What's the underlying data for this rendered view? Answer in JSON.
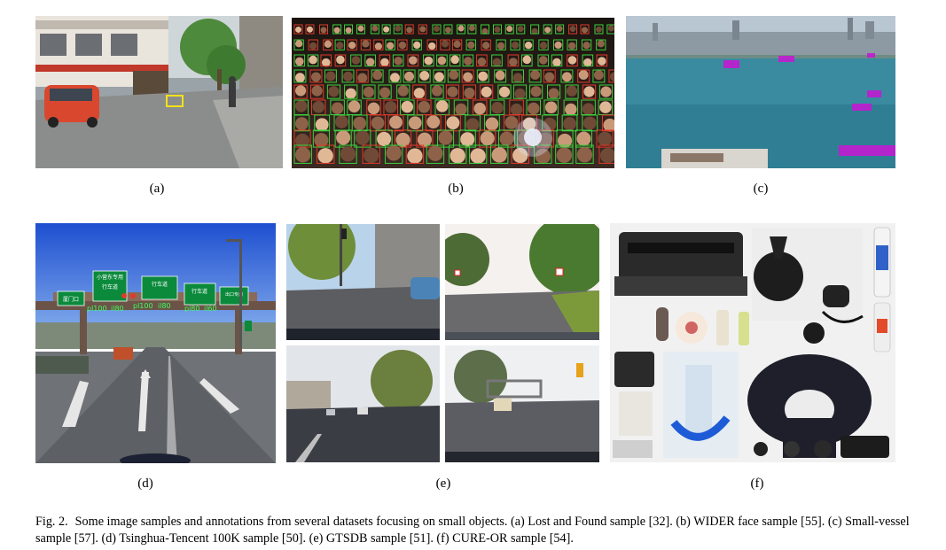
{
  "figure": {
    "panel_labels": [
      "(a)",
      "(b)",
      "(c)",
      "(d)",
      "(e)",
      "(f)"
    ],
    "sign_texts": {
      "gate": "厦门口",
      "left_sign": "小营东专用",
      "left_sign_sub": "行车道",
      "mid_sign": "行车道",
      "right_sign": "行车道",
      "far_right_sign": "出口专用"
    },
    "annotation_labels": [
      "pl100",
      "il80",
      "pl100",
      "il80",
      "pl80",
      "il60"
    ],
    "caption_number": "Fig. 2.",
    "caption_text": "Some image samples and annotations from several datasets focusing on small objects. (a) Lost and Found sample [32]. (b) WIDER face sample [55]. (c) Small-vessel sample [57]. (d) Tsinghua-Tencent 100K sample [50]. (e) GTSDB sample [51]. (f) CURE-OR sample [54]."
  },
  "colors": {
    "face_box_green": "#3cd23c",
    "face_box_red": "#e23a2a",
    "vessel_box": "#c21bd0",
    "sign_green": "#0b8a3c",
    "lostfound_box": "#f2e21a"
  }
}
